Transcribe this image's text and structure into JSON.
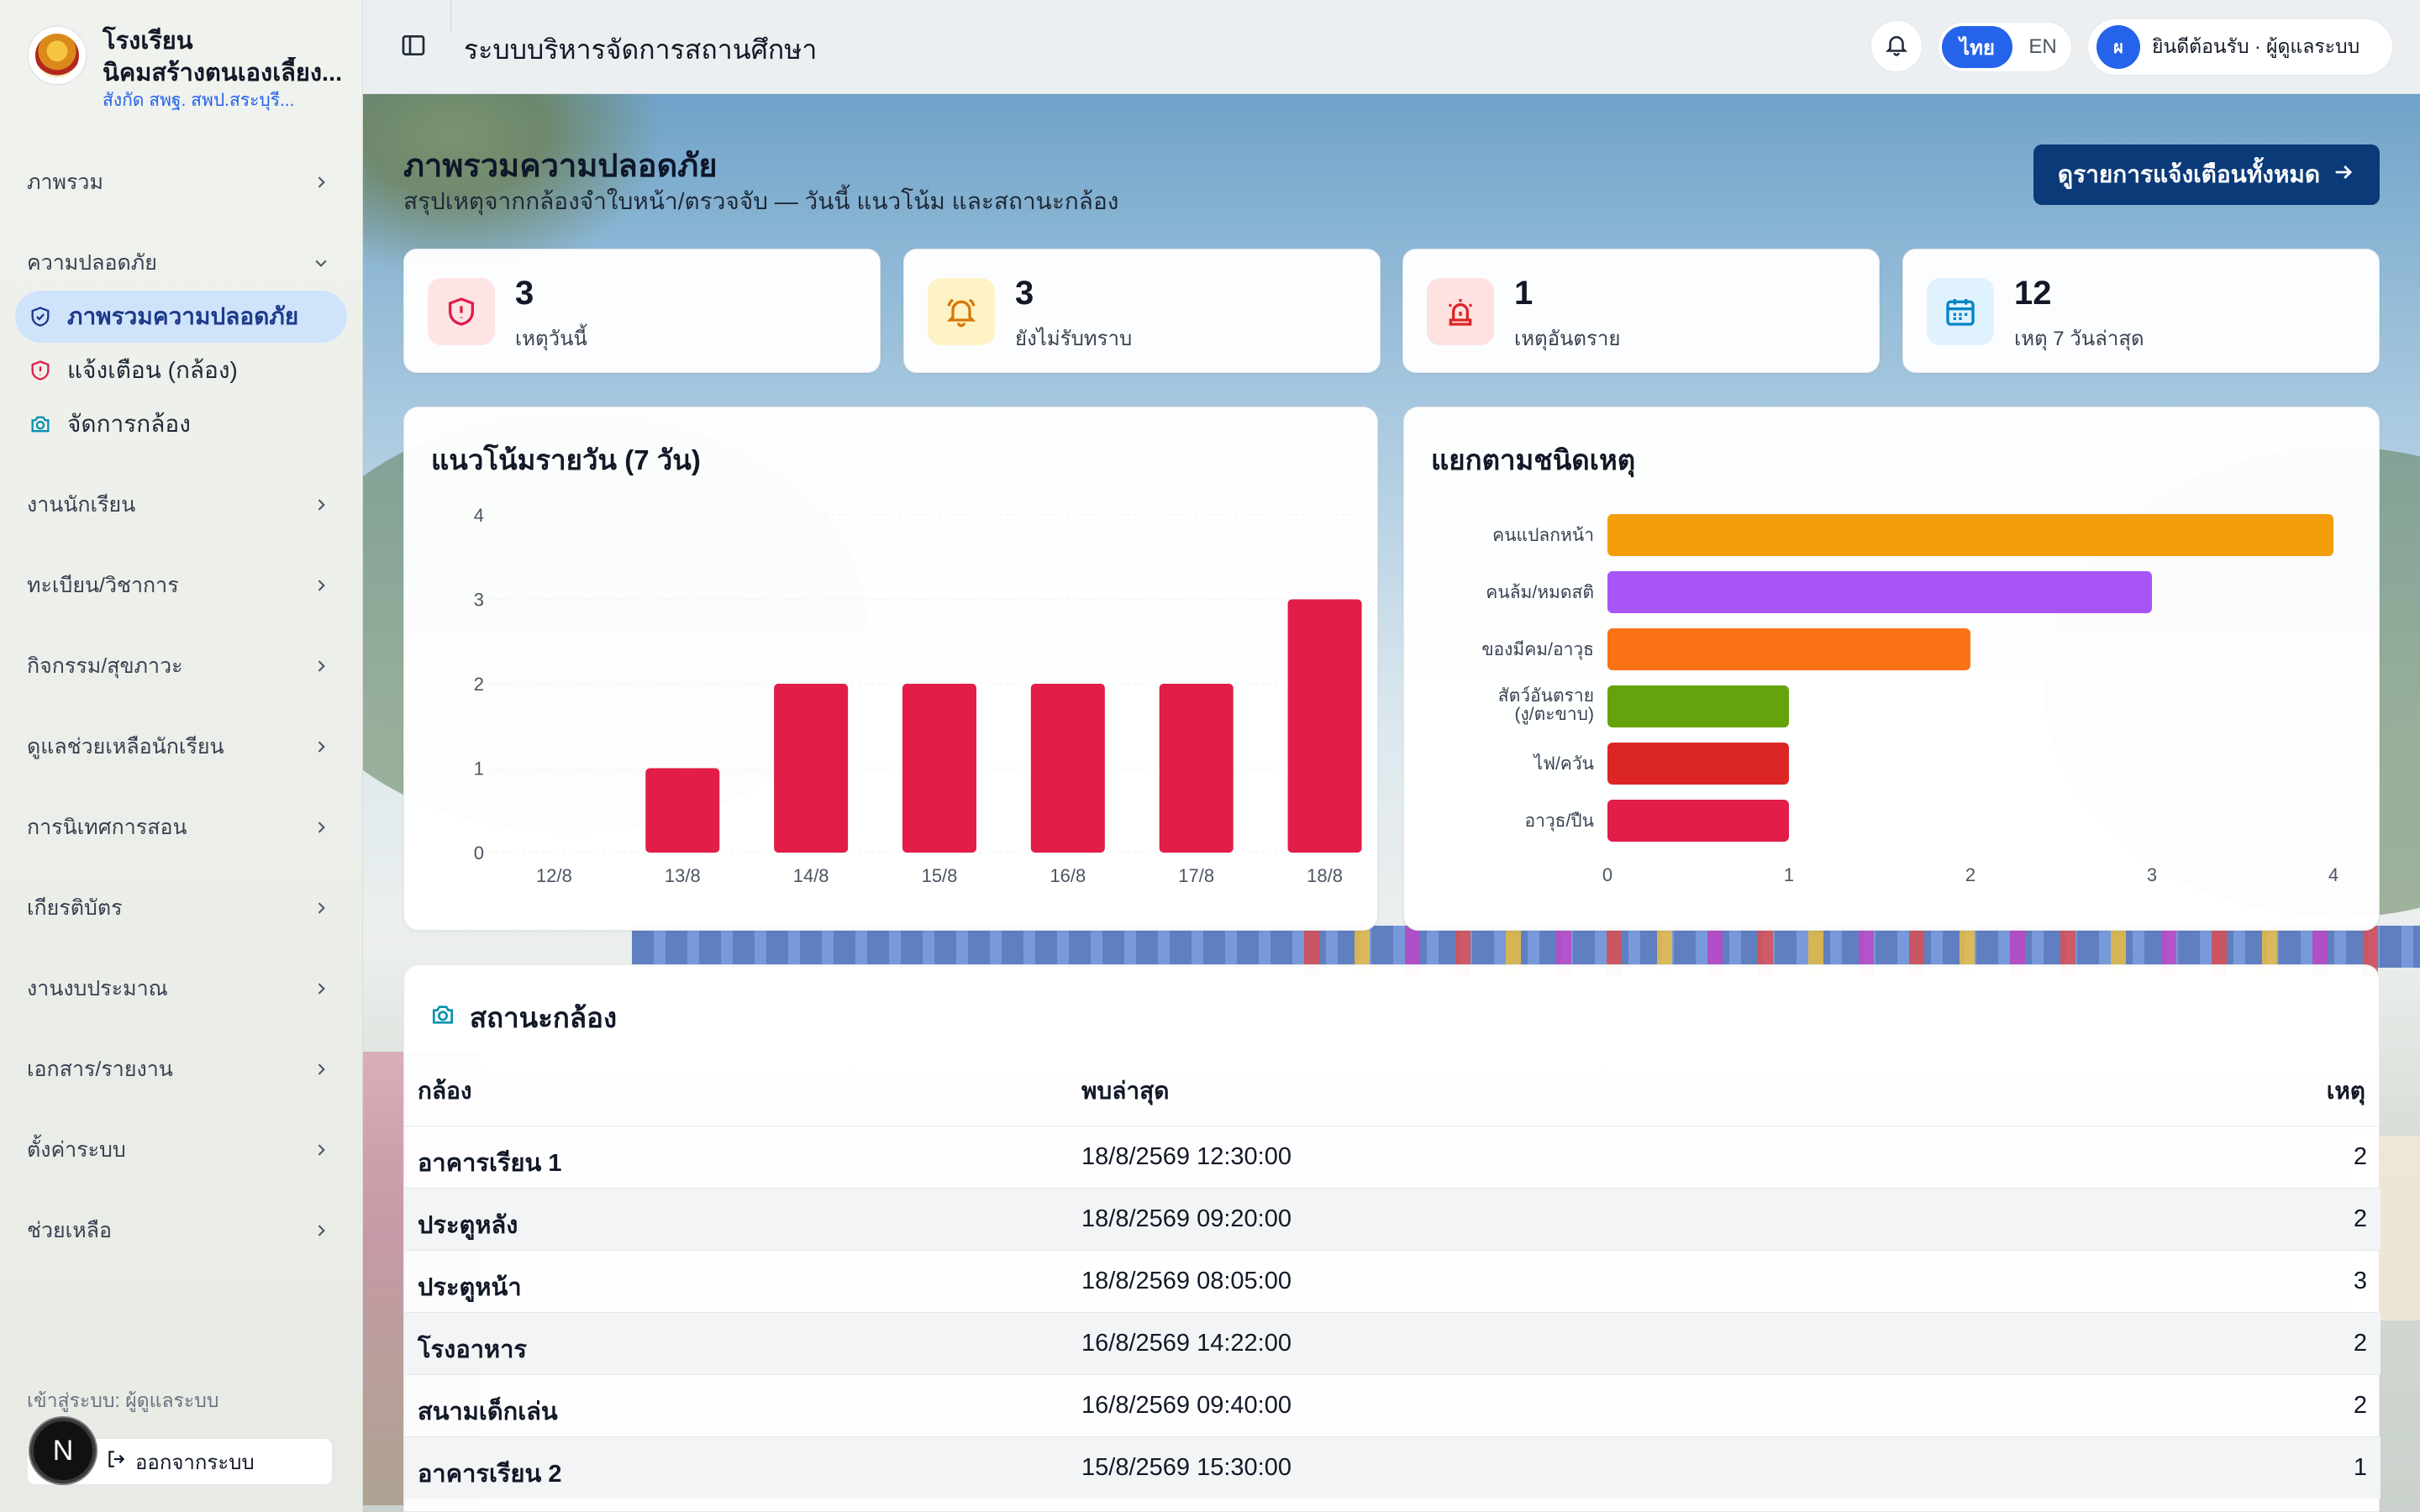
{
  "school": {
    "name_line1": "โรงเรียน",
    "name_line2": "นิคมสร้างตนเองเลี้ยง...",
    "affiliation": "สังกัด สพฐ. สพป.สระบุรี..."
  },
  "sidebar": {
    "items": [
      {
        "label": "ภาพรวม"
      },
      {
        "label": "ความปลอดภัย"
      },
      {
        "label": "งานนักเรียน"
      },
      {
        "label": "ทะเบียน/วิชาการ"
      },
      {
        "label": "กิจกรรม/สุขภาวะ"
      },
      {
        "label": "ดูแลช่วยเหลือนักเรียน"
      },
      {
        "label": "การนิเทศการสอน"
      },
      {
        "label": "เกียรติบัตร"
      },
      {
        "label": "งานงบประมาณ"
      },
      {
        "label": "เอกสาร/รายงาน"
      },
      {
        "label": "ตั้งค่าระบบ"
      },
      {
        "label": "ช่วยเหลือ"
      }
    ],
    "safety_sub": [
      {
        "label": "ภาพรวมความปลอดภัย",
        "icon": "shield-check-icon"
      },
      {
        "label": "แจ้งเตือน (กล้อง)",
        "icon": "shield-alert-icon"
      },
      {
        "label": "จัดการกล้อง",
        "icon": "camera-icon"
      }
    ],
    "login_as": "เข้าสู่ระบบ: ผู้ดูแลระบบ",
    "logout": "ออกจากระบบ",
    "dev_badge": "N"
  },
  "topbar": {
    "title": "ระบบบริหารจัดการสถานศึกษา",
    "lang_th": "ไทย",
    "lang_en": "EN",
    "user_initial": "ผ",
    "user_greeting": "ยินดีต้อนรับ · ผู้ดูแลระบบ"
  },
  "header": {
    "title": "ภาพรวมความปลอดภัย",
    "subtitle": "สรุปเหตุจากกล้องจำใบหน้า/ตรวจจับ — วันนี้ แนวโน้ม และสถานะกล้อง",
    "view_all": "ดูรายการแจ้งเตือนทั้งหมด"
  },
  "stats": [
    {
      "value": "3",
      "label": "เหตุวันนี้",
      "icon": "shield-alert-icon",
      "color": "#e11d48",
      "bg": "#ffe4e6"
    },
    {
      "value": "3",
      "label": "ยังไม่รับทราบ",
      "icon": "bell-ring-icon",
      "color": "#d97706",
      "bg": "#fef3c7"
    },
    {
      "value": "1",
      "label": "เหตุอันตราย",
      "icon": "siren-icon",
      "color": "#dc2626",
      "bg": "#fee2e2"
    },
    {
      "value": "12",
      "label": "เหตุ 7 วันล่าสุด",
      "icon": "calendar-icon",
      "color": "#0284c7",
      "bg": "#e0f2fe"
    }
  ],
  "trend_card": {
    "title": "แนวโน้มรายวัน (7 วัน)"
  },
  "type_card": {
    "title": "แยกตามชนิดเหตุ"
  },
  "chart_data": [
    {
      "type": "bar",
      "title": "แนวโน้มรายวัน (7 วัน)",
      "categories": [
        "12/8",
        "13/8",
        "14/8",
        "15/8",
        "16/8",
        "17/8",
        "18/8"
      ],
      "values": [
        0,
        1,
        2,
        2,
        2,
        2,
        3
      ],
      "ylim": [
        0,
        4
      ],
      "yticks": [
        "0",
        "1",
        "2",
        "3",
        "4"
      ],
      "grid": true,
      "color": "#e11d48"
    },
    {
      "type": "bar",
      "orientation": "horizontal",
      "title": "แยกตามชนิดเหตุ",
      "categories": [
        [
          "คนแปลกหน้า"
        ],
        [
          "คนล้ม/หมดสติ"
        ],
        [
          "ของมีคม/อาวุธ"
        ],
        [
          "สัตว์อันตราย",
          "(งู/ตะขาบ)"
        ],
        [
          "ไฟ/ควัน"
        ],
        [
          "อาวุธ/ปืน"
        ]
      ],
      "values": [
        4,
        3,
        2,
        1,
        1,
        1
      ],
      "colors": [
        "#f59e0b",
        "#a855f7",
        "#f97316",
        "#65a30d",
        "#dc2626",
        "#e11d48"
      ],
      "xlim": [
        0,
        4
      ],
      "xticks": [
        "0",
        "1",
        "2",
        "3",
        "4"
      ]
    }
  ],
  "cameras": {
    "title": "สถานะกล้อง",
    "headers": {
      "camera": "กล้อง",
      "last_seen": "พบล่าสุด",
      "events": "เหตุ"
    },
    "rows": [
      {
        "camera": "อาคารเรียน 1",
        "last_seen": "18/8/2569 12:30:00",
        "events": "2"
      },
      {
        "camera": "ประตูหลัง",
        "last_seen": "18/8/2569 09:20:00",
        "events": "2"
      },
      {
        "camera": "ประตูหน้า",
        "last_seen": "18/8/2569 08:05:00",
        "events": "3"
      },
      {
        "camera": "โรงอาหาร",
        "last_seen": "16/8/2569 14:22:00",
        "events": "2"
      },
      {
        "camera": "สนามเด็กเล่น",
        "last_seen": "16/8/2569 09:40:00",
        "events": "2"
      },
      {
        "camera": "อาคารเรียน 2",
        "last_seen": "15/8/2569 15:30:00",
        "events": "1"
      }
    ]
  }
}
